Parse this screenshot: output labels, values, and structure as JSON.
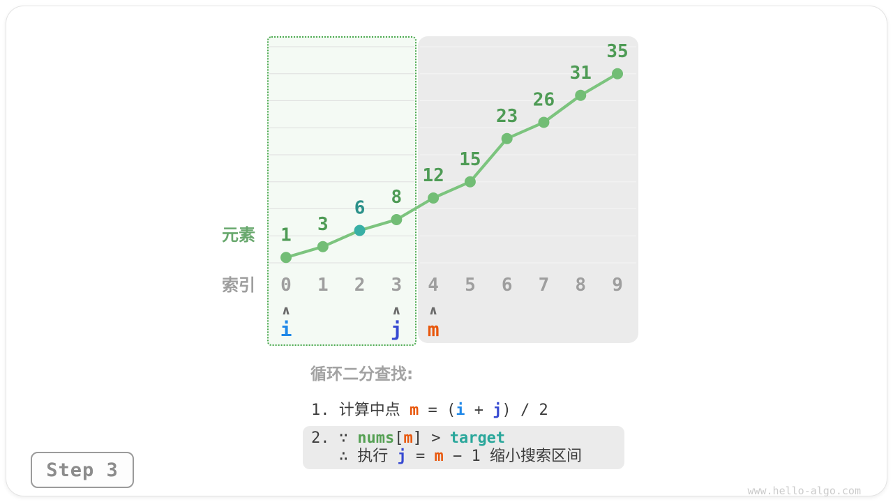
{
  "colors": {
    "line_green": "#7cc47e",
    "point_green": "#72bd75",
    "point_highlight_teal": "#38afa5",
    "value_label_green": "#4e9b55",
    "value_label_teal": "#2b918a",
    "index_gray": "#9e9e9e",
    "element_label_green": "#68a86d",
    "caret_gray": "#6b6b6b",
    "pointer_i_blue": "#2088e8",
    "pointer_j_blue": "#3649d1",
    "pointer_m_orange": "#e8570c",
    "region_border_green": "#4aa94e",
    "region_search_bg": "#f4faf4",
    "region_excluded_bg": "#ebebeb",
    "grid_on_green": "#dedede",
    "grid_on_gray": "#f5f5f5"
  },
  "chart_data": {
    "type": "line",
    "xlabel": "索引",
    "ylabel": "元素",
    "x": [
      0,
      1,
      2,
      3,
      4,
      5,
      6,
      7,
      8,
      9
    ],
    "values": [
      1,
      3,
      6,
      8,
      12,
      15,
      23,
      26,
      31,
      35
    ],
    "ylim": [
      0,
      40
    ],
    "gridline_step": 5,
    "grid": "horizontal",
    "legend_position": "none",
    "highlight_point": {
      "index": 2,
      "value": 6
    },
    "search_range": {
      "start_index": 0,
      "end_index": 3
    },
    "excluded_range": {
      "start_index": 4,
      "end_index": 9
    },
    "pointers": [
      {
        "label": "i",
        "index": 0,
        "color": "#2088e8"
      },
      {
        "label": "j",
        "index": 3,
        "color": "#3649d1"
      },
      {
        "label": "m",
        "index": 4,
        "color": "#e8570c"
      }
    ]
  },
  "caption": {
    "heading": "循环二分查找:",
    "step1": [
      {
        "t": "1. 计算中点 "
      },
      {
        "t": "m",
        "c": "m"
      },
      {
        "t": " = ("
      },
      {
        "t": "i",
        "c": "i"
      },
      {
        "t": " + "
      },
      {
        "t": "j",
        "c": "j"
      },
      {
        "t": ") / 2"
      }
    ],
    "step2_line1": [
      {
        "t": "2. ∵ "
      },
      {
        "t": "nums",
        "c": "nums"
      },
      {
        "t": "["
      },
      {
        "t": "m",
        "c": "m"
      },
      {
        "t": "] > "
      },
      {
        "t": "target",
        "c": "target"
      }
    ],
    "step2_line2": [
      {
        "t": "   ∴ 执行 "
      },
      {
        "t": "j",
        "c": "j"
      },
      {
        "t": " = "
      },
      {
        "t": "m",
        "c": "m"
      },
      {
        "t": " − 1 缩小搜索区间"
      }
    ]
  },
  "step_badge": {
    "label": "Step 3"
  },
  "watermark": "www.hello-algo.com"
}
